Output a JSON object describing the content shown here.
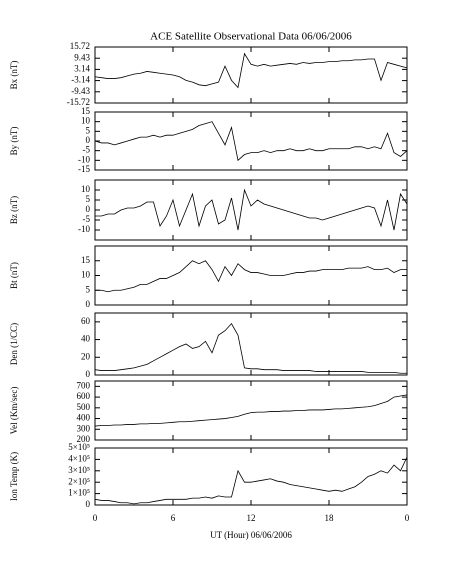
{
  "title": "ACE Satellite Observational Data  06/06/2006",
  "chart_data": [
    {
      "type": "line",
      "ylabel": "Bx (nT)",
      "xlim": [
        0,
        24
      ],
      "ylim": [
        -15.72,
        15.72
      ],
      "yticks": [
        15.72,
        9.43,
        3.14,
        -3.14,
        -9.43,
        -15.72
      ],
      "color": "#000000",
      "x": [
        0,
        0.5,
        1,
        1.5,
        2,
        2.5,
        3,
        3.5,
        4,
        4.5,
        5,
        5.5,
        6,
        6.5,
        7,
        7.5,
        8,
        8.5,
        9,
        9.5,
        10,
        10.5,
        11,
        11.5,
        12,
        12.5,
        13,
        13.5,
        14,
        14.5,
        15,
        15.5,
        16,
        16.5,
        17,
        17.5,
        18,
        18.5,
        19,
        19.5,
        20,
        20.5,
        21,
        21.5,
        22,
        22.5,
        23,
        23.5,
        24
      ],
      "values": [
        -1,
        -1.5,
        -2,
        -2,
        -1.5,
        -0.5,
        0.5,
        1,
        2,
        1.5,
        1,
        0.5,
        0,
        -1,
        -3,
        -4,
        -5.5,
        -6,
        -5,
        -4,
        5,
        -3,
        -7,
        12,
        6,
        5,
        6,
        5,
        5.5,
        6,
        6.5,
        6,
        7,
        6.5,
        7,
        7,
        7.5,
        7.5,
        8,
        8,
        8.5,
        8.5,
        9,
        9,
        -3,
        7,
        6,
        5,
        4
      ]
    },
    {
      "type": "line",
      "ylabel": "By (nT)",
      "xlim": [
        0,
        24
      ],
      "ylim": [
        -15,
        15
      ],
      "yticks": [
        15,
        10,
        5,
        0,
        -5,
        -10,
        -15
      ],
      "color": "#000000",
      "x": [
        0,
        0.5,
        1,
        1.5,
        2,
        2.5,
        3,
        3.5,
        4,
        4.5,
        5,
        5.5,
        6,
        6.5,
        7,
        7.5,
        8,
        8.5,
        9,
        9.5,
        10,
        10.5,
        11,
        11.5,
        12,
        12.5,
        13,
        13.5,
        14,
        14.5,
        15,
        15.5,
        16,
        16.5,
        17,
        17.5,
        18,
        18.5,
        19,
        19.5,
        20,
        20.5,
        21,
        21.5,
        22,
        22.5,
        23,
        23.5,
        24
      ],
      "values": [
        0,
        -1,
        -1,
        -2,
        -1,
        0,
        1,
        2,
        2,
        3,
        2,
        3,
        3,
        4,
        5,
        6,
        8,
        9,
        10,
        4,
        -2,
        7,
        -10,
        -7,
        -6,
        -6,
        -5,
        -6,
        -5,
        -5,
        -4,
        -5,
        -5,
        -4,
        -5,
        -5,
        -4,
        -4,
        -4,
        -4,
        -3,
        -3,
        -4,
        -3,
        -4,
        4,
        -6,
        -8,
        -5
      ]
    },
    {
      "type": "line",
      "ylabel": "Bz (nT)",
      "xlim": [
        0,
        24
      ],
      "ylim": [
        -15,
        15
      ],
      "yticks": [
        10,
        5,
        0,
        -5,
        -10
      ],
      "color": "#000000",
      "x": [
        0,
        0.5,
        1,
        1.5,
        2,
        2.5,
        3,
        3.5,
        4,
        4.5,
        5,
        5.5,
        6,
        6.5,
        7,
        7.5,
        8,
        8.5,
        9,
        9.5,
        10,
        10.5,
        11,
        11.5,
        12,
        12.5,
        13,
        13.5,
        14,
        14.5,
        15,
        15.5,
        16,
        16.5,
        17,
        17.5,
        18,
        18.5,
        19,
        19.5,
        20,
        20.5,
        21,
        21.5,
        22,
        22.5,
        23,
        23.5,
        24
      ],
      "values": [
        -3,
        -3,
        -2,
        -2,
        0,
        1,
        1,
        2,
        4,
        4,
        -8,
        -3,
        5,
        -8,
        0,
        8,
        -8,
        2,
        5,
        -7,
        -5,
        6,
        -10,
        10,
        2,
        5,
        3,
        2,
        1,
        0,
        -1,
        -2,
        -3,
        -4,
        -4,
        -5,
        -4,
        -3,
        -2,
        -1,
        0,
        1,
        2,
        1,
        -8,
        5,
        -10,
        8,
        3
      ]
    },
    {
      "type": "line",
      "ylabel": "Bt (nT)",
      "xlim": [
        0,
        24
      ],
      "ylim": [
        0,
        20
      ],
      "yticks": [
        0,
        5,
        10,
        15
      ],
      "color": "#000000",
      "x": [
        0,
        0.5,
        1,
        1.5,
        2,
        2.5,
        3,
        3.5,
        4,
        4.5,
        5,
        5.5,
        6,
        6.5,
        7,
        7.5,
        8,
        8.5,
        9,
        9.5,
        10,
        10.5,
        11,
        11.5,
        12,
        12.5,
        13,
        13.5,
        14,
        14.5,
        15,
        15.5,
        16,
        16.5,
        17,
        17.5,
        18,
        18.5,
        19,
        19.5,
        20,
        20.5,
        21,
        21.5,
        22,
        22.5,
        23,
        23.5,
        24
      ],
      "values": [
        5,
        5,
        4.5,
        5,
        5,
        5.5,
        6,
        7,
        7,
        8,
        9,
        9,
        10,
        11,
        13,
        15,
        14,
        15,
        12,
        8,
        13,
        10,
        14,
        12,
        11,
        11,
        10.5,
        10,
        10,
        10,
        10.5,
        11,
        11,
        11.5,
        11.5,
        12,
        12,
        12,
        12,
        12.5,
        12.5,
        12.5,
        13,
        12,
        12,
        12.5,
        11,
        12,
        12
      ]
    },
    {
      "type": "line",
      "ylabel": "Den (1/CC)",
      "xlim": [
        0,
        24
      ],
      "ylim": [
        0,
        70
      ],
      "yticks": [
        0,
        20,
        40,
        60
      ],
      "color": "#000000",
      "x": [
        0,
        0.5,
        1,
        1.5,
        2,
        2.5,
        3,
        3.5,
        4,
        4.5,
        5,
        5.5,
        6,
        6.5,
        7,
        7.5,
        8,
        8.5,
        9,
        9.5,
        10,
        10.5,
        11,
        11.5,
        12,
        12.5,
        13,
        13.5,
        14,
        14.5,
        15,
        15.5,
        16,
        16.5,
        17,
        17.5,
        18,
        18.5,
        19,
        19.5,
        20,
        20.5,
        21,
        21.5,
        22,
        22.5,
        23,
        23.5,
        24
      ],
      "values": [
        6,
        5,
        5,
        5,
        6,
        7,
        8,
        10,
        12,
        16,
        20,
        24,
        28,
        32,
        35,
        30,
        32,
        38,
        25,
        45,
        50,
        58,
        45,
        8,
        7,
        7,
        6,
        6,
        6,
        5,
        5,
        5,
        5,
        5,
        4,
        4,
        4,
        4,
        4,
        4,
        4,
        4,
        3,
        3,
        3,
        3,
        3,
        2,
        2
      ]
    },
    {
      "type": "line",
      "ylabel": "Vel (Km/sec)",
      "xlim": [
        0,
        24
      ],
      "ylim": [
        200,
        750
      ],
      "yticks": [
        200,
        300,
        400,
        500,
        600,
        700
      ],
      "color": "#000000",
      "x": [
        0,
        0.5,
        1,
        1.5,
        2,
        2.5,
        3,
        3.5,
        4,
        4.5,
        5,
        5.5,
        6,
        6.5,
        7,
        7.5,
        8,
        8.5,
        9,
        9.5,
        10,
        10.5,
        11,
        11.5,
        12,
        12.5,
        13,
        13.5,
        14,
        14.5,
        15,
        15.5,
        16,
        16.5,
        17,
        17.5,
        18,
        18.5,
        19,
        19.5,
        20,
        20.5,
        21,
        21.5,
        22,
        22.5,
        23,
        23.5,
        24
      ],
      "values": [
        330,
        335,
        335,
        340,
        340,
        345,
        345,
        350,
        350,
        355,
        355,
        360,
        365,
        370,
        370,
        375,
        380,
        385,
        390,
        395,
        400,
        410,
        420,
        440,
        455,
        460,
        460,
        465,
        465,
        470,
        470,
        475,
        475,
        480,
        480,
        480,
        485,
        490,
        490,
        495,
        500,
        505,
        510,
        520,
        540,
        560,
        600,
        610,
        620
      ]
    },
    {
      "type": "line",
      "ylabel": "Ion Temp (K)",
      "xlabel": "UT (Hour)  06/06/2006",
      "xlim": [
        0,
        24
      ],
      "xticks": [
        0,
        6,
        12,
        18,
        {
          "value": 24,
          "label": "0"
        }
      ],
      "ylim": [
        0,
        500000
      ],
      "yticks": [
        0,
        {
          "value": 100000,
          "label": "1×10⁵"
        },
        {
          "value": 200000,
          "label": "2×10⁵"
        },
        {
          "value": 300000,
          "label": "3×10⁵"
        },
        {
          "value": 400000,
          "label": "4×10⁵"
        },
        {
          "value": 500000,
          "label": "5×10⁵"
        }
      ],
      "color": "#000000",
      "x": [
        0,
        0.5,
        1,
        1.5,
        2,
        2.5,
        3,
        3.5,
        4,
        4.5,
        5,
        5.5,
        6,
        6.5,
        7,
        7.5,
        8,
        8.5,
        9,
        9.5,
        10,
        10.5,
        11,
        11.5,
        12,
        12.5,
        13,
        13.5,
        14,
        14.5,
        15,
        15.5,
        16,
        16.5,
        17,
        17.5,
        18,
        18.5,
        19,
        19.5,
        20,
        20.5,
        21,
        21.5,
        22,
        22.5,
        23,
        23.5,
        24
      ],
      "values": [
        50000,
        40000,
        40000,
        30000,
        20000,
        20000,
        10000,
        20000,
        20000,
        30000,
        40000,
        50000,
        50000,
        50000,
        50000,
        60000,
        60000,
        70000,
        60000,
        80000,
        70000,
        70000,
        300000,
        200000,
        200000,
        210000,
        220000,
        230000,
        210000,
        200000,
        180000,
        170000,
        160000,
        150000,
        140000,
        130000,
        120000,
        130000,
        120000,
        140000,
        160000,
        200000,
        250000,
        270000,
        300000,
        280000,
        350000,
        300000,
        420000
      ]
    }
  ]
}
